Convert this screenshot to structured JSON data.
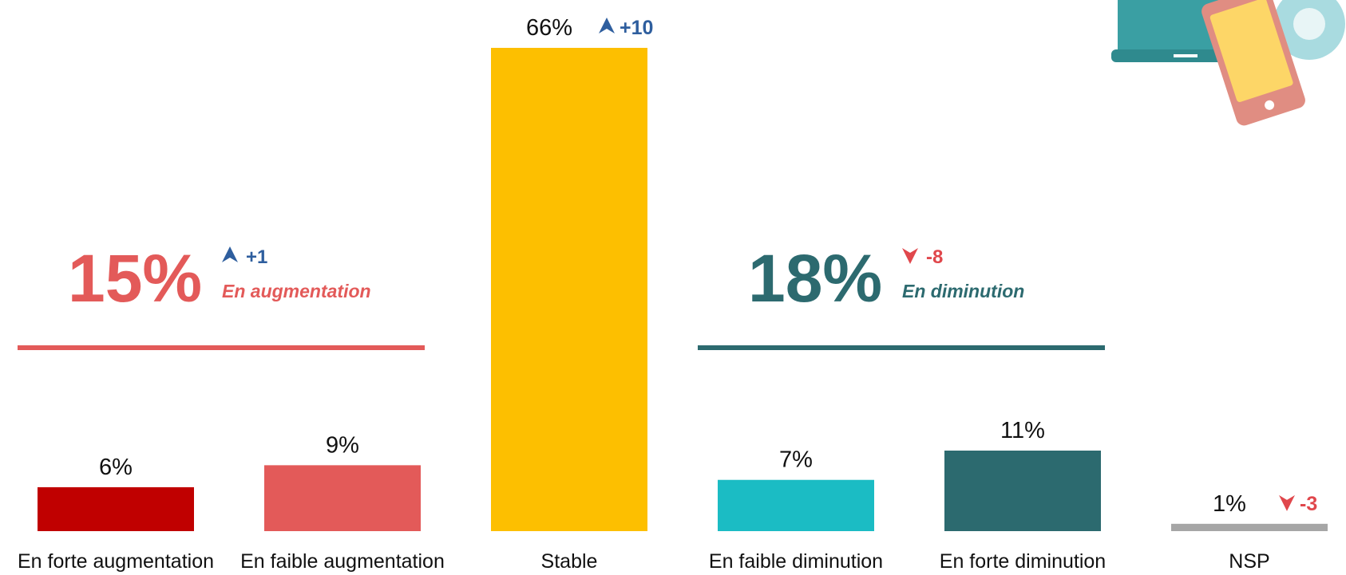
{
  "chart_data": {
    "type": "bar",
    "categories": [
      "En forte augmentation",
      "En faible augmentation",
      "Stable",
      "En faible diminution",
      "En forte diminution",
      "NSP"
    ],
    "values": [
      6,
      9,
      66,
      7,
      11,
      1
    ],
    "value_labels": [
      "6%",
      "9%",
      "66%",
      "7%",
      "11%",
      "1%"
    ],
    "colors": [
      "#c00000",
      "#e35a59",
      "#fdbf00",
      "#1bbcc4",
      "#2c6a6f",
      "#a6a6a6"
    ],
    "changes": [
      null,
      null,
      10,
      null,
      null,
      -3
    ],
    "change_labels": [
      null,
      null,
      "+10",
      null,
      null,
      "-3"
    ],
    "up_color": "#2e5e9e",
    "down_color": "#e0474c",
    "groups": [
      {
        "label": "En augmentation",
        "value": 15,
        "value_label": "15%",
        "change": 1,
        "change_label": "+1",
        "color": "#e35a59",
        "first": 0,
        "last": 1
      },
      {
        "label": "En diminution",
        "value": 18,
        "value_label": "18%",
        "change": -8,
        "change_label": "-8",
        "color": "#2c6a6f",
        "first": 3,
        "last": 4
      }
    ]
  }
}
